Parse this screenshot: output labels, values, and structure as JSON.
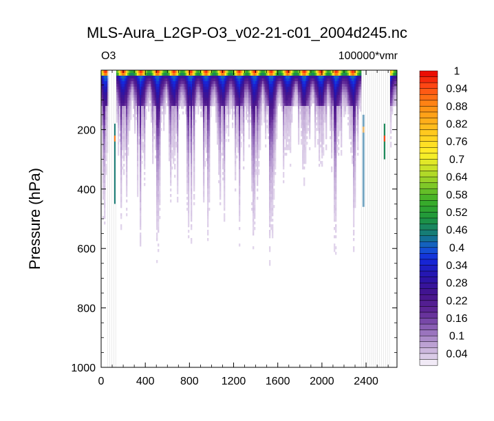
{
  "chart_data": {
    "type": "heatmap",
    "title": "MLS-Aura_L2GP-O3_v02-21-c01_2004d245.nc",
    "left_string": "O3",
    "right_string": "100000*vmr",
    "ylabel": "Pressure (hPa)",
    "xlabel": "",
    "xlim": [
      0,
      2680
    ],
    "ylim": [
      1000,
      0
    ],
    "y_reversed": true,
    "x_ticks": [
      0,
      400,
      800,
      1200,
      1600,
      2000,
      2400
    ],
    "y_ticks": [
      200,
      400,
      600,
      800,
      1000
    ],
    "colorbar": {
      "min": 0,
      "max": 1,
      "step": 0.02,
      "labels": [
        "1",
        "0.94",
        "0.88",
        "0.82",
        "0.76",
        "0.7",
        "0.64",
        "0.58",
        "0.52",
        "0.46",
        "0.4",
        "0.34",
        "0.28",
        "0.22",
        "0.16",
        "0.1",
        "0.04"
      ]
    },
    "field_description": {
      "orbit_peak_x": [
        40,
        200,
        360,
        510,
        660,
        810,
        950,
        1100,
        1250,
        1390,
        1540,
        1690,
        1840,
        1990,
        2130,
        2280,
        2430,
        2600
      ],
      "peak_value": 1.0,
      "peak_pressure_hPa": 5,
      "deep_penetration_pressure_hPa": 400,
      "gap_x_ranges": [
        [
          60,
          140
        ],
        [
          2360,
          2620
        ]
      ]
    }
  }
}
